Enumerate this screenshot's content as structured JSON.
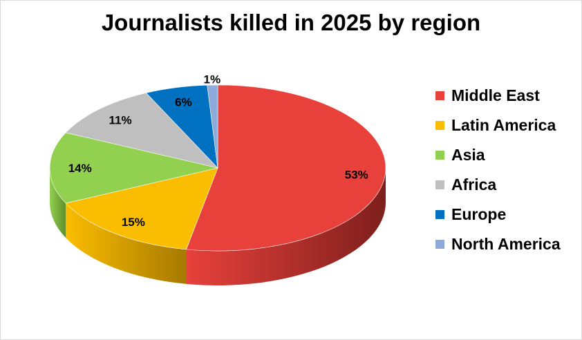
{
  "chart_data": {
    "type": "pie",
    "title": "Journalists killed in 2025 by region",
    "slices": [
      {
        "label": "Middle East",
        "value": 53,
        "display": "53%",
        "color": "#e8413c",
        "side": "#7e1f1c"
      },
      {
        "label": "Latin America",
        "value": 15,
        "display": "15%",
        "color": "#fbbd00",
        "side": "#a67900"
      },
      {
        "label": "Asia",
        "value": 14,
        "display": "14%",
        "color": "#92d050",
        "side": "#5e8f2c"
      },
      {
        "label": "Africa",
        "value": 11,
        "display": "11%",
        "color": "#bfbfbf",
        "side": "#7a7a7a"
      },
      {
        "label": "Europe",
        "value": 6,
        "display": "6%",
        "color": "#0070c0",
        "side": "#004477"
      },
      {
        "label": "North America",
        "value": 1,
        "display": "1%",
        "color": "#8eaadb",
        "side": "#566b90"
      }
    ],
    "legend_position": "right",
    "style": "3d-pie"
  }
}
